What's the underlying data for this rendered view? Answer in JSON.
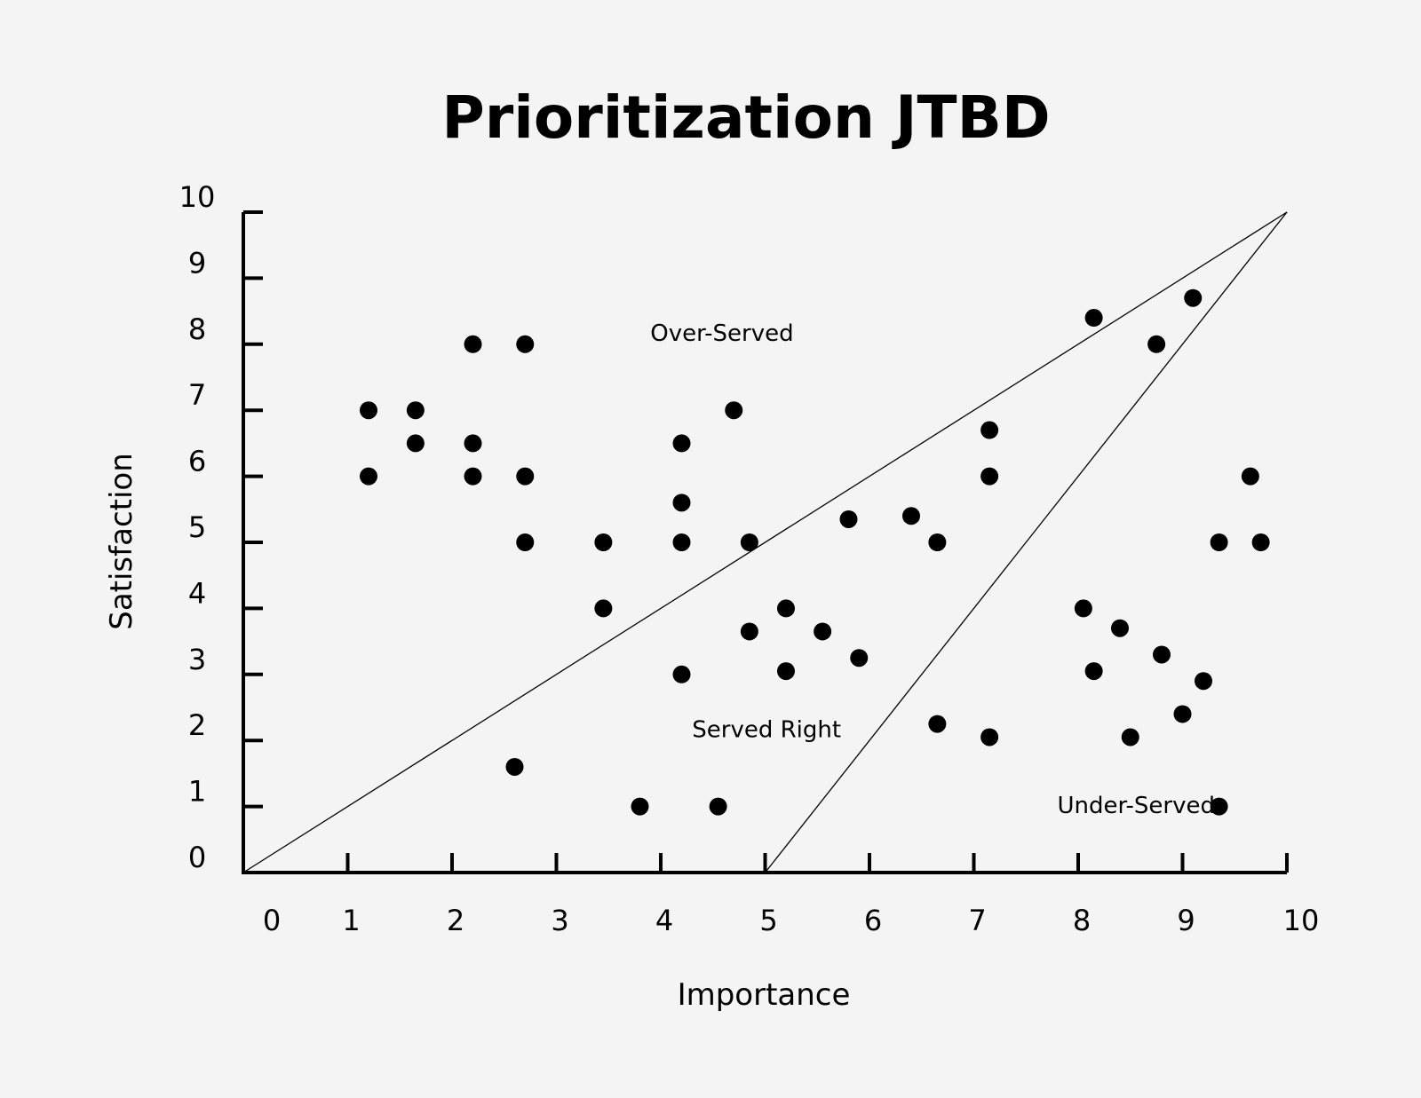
{
  "chart_data": {
    "type": "scatter",
    "title": "Prioritization JTBD",
    "xlabel": "Importance",
    "ylabel": "Satisfaction",
    "xlim": [
      0,
      10
    ],
    "ylim": [
      0,
      10
    ],
    "x_ticks": [
      "0",
      "1",
      "2",
      "3",
      "4",
      "5",
      "6",
      "7",
      "8",
      "9",
      "10"
    ],
    "y_ticks": [
      "0",
      "1",
      "2",
      "3",
      "4",
      "5",
      "6",
      "7",
      "8",
      "9",
      "10"
    ],
    "grid": false,
    "point_color": "#000000",
    "region_labels": [
      {
        "text": "Over-Served",
        "x": 3.9,
        "y": 8.05
      },
      {
        "text": "Served Right",
        "x": 4.3,
        "y": 2.05
      },
      {
        "text": "Under-Served",
        "x": 7.8,
        "y": 0.9
      }
    ],
    "boundary_lines": [
      {
        "from": [
          0,
          0
        ],
        "to": [
          10,
          10
        ]
      },
      {
        "from": [
          5,
          0
        ],
        "to": [
          10,
          10
        ]
      }
    ],
    "points": [
      {
        "x": 1.2,
        "y": 7.0
      },
      {
        "x": 1.2,
        "y": 6.0
      },
      {
        "x": 1.65,
        "y": 7.0
      },
      {
        "x": 1.65,
        "y": 6.5
      },
      {
        "x": 2.2,
        "y": 8.0
      },
      {
        "x": 2.2,
        "y": 6.5
      },
      {
        "x": 2.2,
        "y": 6.0
      },
      {
        "x": 2.7,
        "y": 8.0
      },
      {
        "x": 2.7,
        "y": 6.0
      },
      {
        "x": 2.7,
        "y": 5.0
      },
      {
        "x": 2.6,
        "y": 1.6
      },
      {
        "x": 3.45,
        "y": 5.0
      },
      {
        "x": 3.45,
        "y": 4.0
      },
      {
        "x": 3.8,
        "y": 1.0
      },
      {
        "x": 4.2,
        "y": 6.5
      },
      {
        "x": 4.2,
        "y": 5.6
      },
      {
        "x": 4.2,
        "y": 5.0
      },
      {
        "x": 4.2,
        "y": 3.0
      },
      {
        "x": 4.55,
        "y": 1.0
      },
      {
        "x": 4.7,
        "y": 7.0
      },
      {
        "x": 4.85,
        "y": 5.0
      },
      {
        "x": 4.85,
        "y": 3.65
      },
      {
        "x": 5.2,
        "y": 4.0
      },
      {
        "x": 5.2,
        "y": 3.05
      },
      {
        "x": 5.55,
        "y": 3.65
      },
      {
        "x": 5.8,
        "y": 5.35
      },
      {
        "x": 5.9,
        "y": 3.25
      },
      {
        "x": 6.4,
        "y": 5.4
      },
      {
        "x": 6.65,
        "y": 5.0
      },
      {
        "x": 6.65,
        "y": 2.25
      },
      {
        "x": 7.15,
        "y": 6.7
      },
      {
        "x": 7.15,
        "y": 6.0
      },
      {
        "x": 7.15,
        "y": 2.05
      },
      {
        "x": 8.05,
        "y": 4.0
      },
      {
        "x": 8.15,
        "y": 8.4
      },
      {
        "x": 8.15,
        "y": 3.05
      },
      {
        "x": 8.4,
        "y": 3.7
      },
      {
        "x": 8.5,
        "y": 2.05
      },
      {
        "x": 8.75,
        "y": 8.0
      },
      {
        "x": 8.8,
        "y": 3.3
      },
      {
        "x": 9.0,
        "y": 2.4
      },
      {
        "x": 9.1,
        "y": 8.7
      },
      {
        "x": 9.2,
        "y": 2.9
      },
      {
        "x": 9.35,
        "y": 5.0
      },
      {
        "x": 9.35,
        "y": 1.0
      },
      {
        "x": 9.65,
        "y": 6.0
      },
      {
        "x": 9.75,
        "y": 5.0
      }
    ]
  }
}
